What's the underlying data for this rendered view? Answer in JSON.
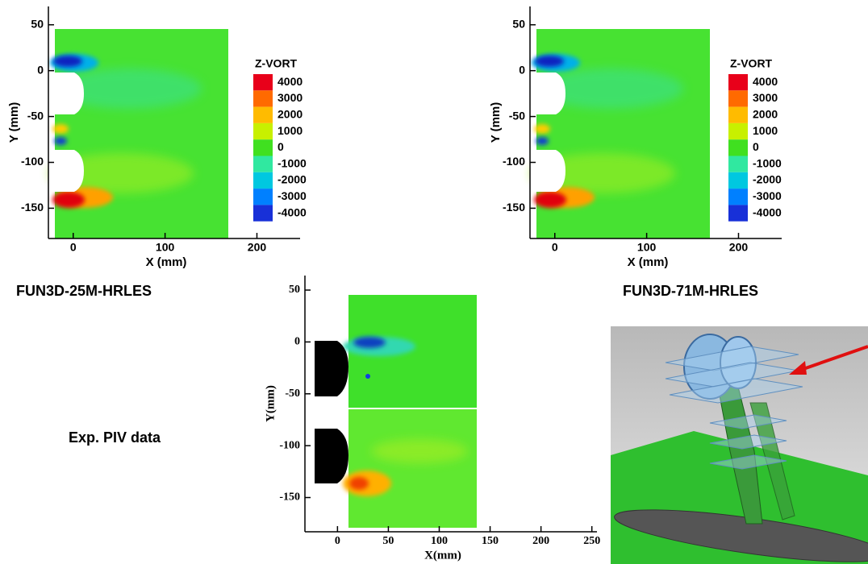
{
  "plots": [
    {
      "caption": "FUN3D-25M-HRLES",
      "xlabel": "X (mm)",
      "ylabel": "Y (mm)",
      "xlim": [
        -27,
        247
      ],
      "ylim": [
        -183,
        70
      ],
      "xticks": [
        0,
        100,
        200
      ],
      "yticks": [
        50,
        0,
        -50,
        -100,
        -150
      ],
      "colorbar": {
        "title": "Z-VORT",
        "levels": [
          4000,
          3000,
          2000,
          1000,
          0,
          -1000,
          -2000,
          -3000,
          -4000
        ],
        "colors": [
          "#e8001a",
          "#ff6a00",
          "#ffbb00",
          "#c8f000",
          "#40e020",
          "#30e8a0",
          "#00c8e0",
          "#0080ff",
          "#1830d8"
        ]
      }
    },
    {
      "caption": "FUN3D-71M-HRLES",
      "xlabel": "X (mm)",
      "ylabel": "Y (mm)",
      "xlim": [
        -27,
        247
      ],
      "ylim": [
        -183,
        70
      ],
      "xticks": [
        0,
        100,
        200
      ],
      "yticks": [
        50,
        0,
        -50,
        -100,
        -150
      ],
      "colorbar": {
        "title": "Z-VORT",
        "levels": [
          4000,
          3000,
          2000,
          1000,
          0,
          -1000,
          -2000,
          -3000,
          -4000
        ],
        "colors": [
          "#e8001a",
          "#ff6a00",
          "#ffbb00",
          "#c8f000",
          "#40e020",
          "#30e8a0",
          "#00c8e0",
          "#0080ff",
          "#1830d8"
        ]
      }
    },
    {
      "caption": "Exp. PIV data",
      "xlabel": "X(mm)",
      "ylabel": "Y(mm)",
      "xlim": [
        -32,
        255
      ],
      "ylim": [
        -183,
        64
      ],
      "xticks": [
        0,
        50,
        100,
        150,
        200,
        250
      ],
      "yticks": [
        50,
        0,
        -50,
        -100,
        -150
      ]
    }
  ]
}
